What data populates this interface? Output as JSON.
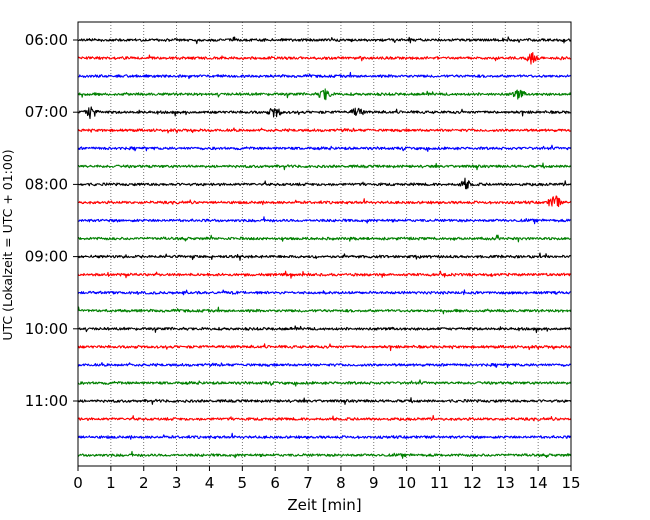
{
  "chart_data": {
    "type": "line",
    "title": "",
    "xlabel": "Zeit  [min]",
    "ylabel": "UTC (Lokalzeit = UTC + 01:00)",
    "xlim": [
      0,
      15
    ],
    "x_ticks": [
      "0",
      "1",
      "2",
      "3",
      "4",
      "5",
      "6",
      "7",
      "8",
      "9",
      "10",
      "11",
      "12",
      "13",
      "14",
      "15"
    ],
    "y_tick_labels": [
      "06:00",
      "07:00",
      "08:00",
      "09:00",
      "10:00",
      "11:00"
    ],
    "traces_per_hour": 4,
    "grid": "vertical dotted",
    "series_colors": [
      "#000000",
      "#ff0000",
      "#0000ff",
      "#008000"
    ],
    "series": [
      {
        "start": "06:00",
        "color": "#000000"
      },
      {
        "start": "06:15",
        "color": "#ff0000",
        "events": [
          {
            "t": 13.8,
            "amp": 0.35
          }
        ]
      },
      {
        "start": "06:30",
        "color": "#0000ff"
      },
      {
        "start": "06:45",
        "color": "#008000",
        "events": [
          {
            "t": 7.5,
            "amp": 0.4
          },
          {
            "t": 13.4,
            "amp": 0.3
          }
        ]
      },
      {
        "start": "07:00",
        "color": "#000000",
        "events": [
          {
            "t": 0.4,
            "amp": 0.45
          },
          {
            "t": 6.0,
            "amp": 0.35
          },
          {
            "t": 8.5,
            "amp": 0.3
          }
        ]
      },
      {
        "start": "07:15",
        "color": "#ff0000"
      },
      {
        "start": "07:30",
        "color": "#0000ff"
      },
      {
        "start": "07:45",
        "color": "#008000"
      },
      {
        "start": "08:00",
        "color": "#000000",
        "events": [
          {
            "t": 11.8,
            "amp": 0.3
          }
        ]
      },
      {
        "start": "08:15",
        "color": "#ff0000",
        "events": [
          {
            "t": 14.5,
            "amp": 0.5
          }
        ]
      },
      {
        "start": "08:30",
        "color": "#0000ff"
      },
      {
        "start": "08:45",
        "color": "#008000"
      },
      {
        "start": "09:00",
        "color": "#000000"
      },
      {
        "start": "09:15",
        "color": "#ff0000"
      },
      {
        "start": "09:30",
        "color": "#0000ff"
      },
      {
        "start": "09:45",
        "color": "#008000"
      },
      {
        "start": "10:00",
        "color": "#000000"
      },
      {
        "start": "10:15",
        "color": "#ff0000"
      },
      {
        "start": "10:30",
        "color": "#0000ff"
      },
      {
        "start": "10:45",
        "color": "#008000"
      },
      {
        "start": "11:00",
        "color": "#000000"
      },
      {
        "start": "11:15",
        "color": "#ff0000"
      },
      {
        "start": "11:30",
        "color": "#0000ff"
      },
      {
        "start": "11:45",
        "color": "#008000"
      }
    ]
  }
}
